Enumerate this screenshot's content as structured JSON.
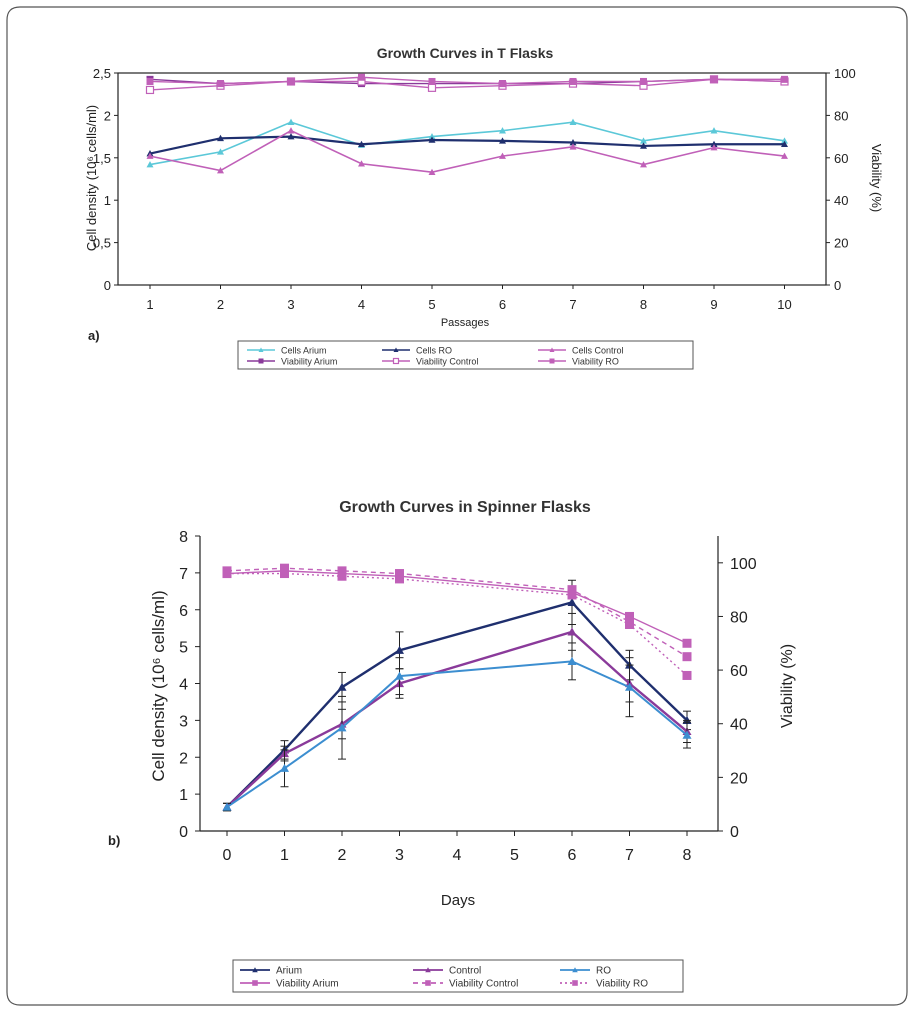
{
  "colors": {
    "cyan": "#5bc8d8",
    "navy": "#1f2f6e",
    "magenta": "#c060b8",
    "purple": "#8a3a9a",
    "blue": "#3c8ed0",
    "pink": "#c060b8",
    "frame": "#555555"
  },
  "chart_data": [
    {
      "type": "line",
      "panel_label": "a)",
      "title": "Growth Curves in T Flasks",
      "xlabel": "Passages",
      "ylabel": "Cell density (10⁶ cells/ml)",
      "ylabel_right": "Viability (%)",
      "categories": [
        "1",
        "2",
        "3",
        "4",
        "5",
        "6",
        "7",
        "8",
        "9",
        "10"
      ],
      "x": [
        1,
        2,
        3,
        4,
        5,
        6,
        7,
        8,
        9,
        10
      ],
      "ylim": [
        0,
        2.5
      ],
      "ylim_right": [
        0,
        100
      ],
      "yticks": [
        "0",
        "0,5",
        "1",
        "1,5",
        "2",
        "2,5"
      ],
      "yticks_right": [
        "0",
        "20",
        "40",
        "60",
        "80",
        "100"
      ],
      "grid": false,
      "legend": "bottom",
      "series": [
        {
          "name": "Cells Arium",
          "axis": "left",
          "values": [
            1.42,
            1.57,
            1.92,
            1.65,
            1.75,
            1.82,
            1.92,
            1.7,
            1.82,
            1.7
          ]
        },
        {
          "name": "Cells RO",
          "axis": "left",
          "values": [
            1.55,
            1.73,
            1.75,
            1.66,
            1.71,
            1.7,
            1.68,
            1.64,
            1.66,
            1.66
          ]
        },
        {
          "name": "Cells Control",
          "axis": "left",
          "values": [
            1.52,
            1.35,
            1.82,
            1.43,
            1.33,
            1.52,
            1.63,
            1.42,
            1.62,
            1.52
          ]
        },
        {
          "name": "Viability Arium",
          "axis": "right",
          "values": [
            97,
            95,
            96,
            95,
            95,
            95,
            95,
            96,
            97,
            96
          ]
        },
        {
          "name": "Viability Control",
          "axis": "right",
          "values": [
            92,
            94,
            96,
            96,
            93,
            94,
            95,
            94,
            97,
            96
          ]
        },
        {
          "name": "Viability RO",
          "axis": "right",
          "values": [
            96,
            95,
            96,
            98,
            96,
            95,
            96,
            96,
            97,
            97
          ]
        }
      ]
    },
    {
      "type": "line",
      "panel_label": "b)",
      "title": "Growth Curves in Spinner Flasks",
      "xlabel": "Days",
      "ylabel": "Cell density (10⁶ cells/ml)",
      "ylabel_right": "Viability (%)",
      "xlim": [
        -0.5,
        8.5
      ],
      "xticks": [
        0,
        1,
        2,
        3,
        4,
        5,
        6,
        7,
        8
      ],
      "ylim": [
        0,
        8
      ],
      "ylim_right": [
        0,
        110
      ],
      "yticks": [
        0,
        1,
        2,
        3,
        4,
        5,
        6,
        7,
        8
      ],
      "yticks_right": [
        0,
        20,
        40,
        60,
        80,
        100
      ],
      "grid": false,
      "legend": "bottom",
      "series": [
        {
          "name": "Arium",
          "axis": "left",
          "x": [
            0,
            1,
            2,
            3,
            6,
            7,
            8
          ],
          "values": [
            0.65,
            2.2,
            3.9,
            4.9,
            6.2,
            4.5,
            3.0
          ],
          "errors": [
            0.1,
            0.25,
            0.4,
            0.5,
            0.6,
            0.4,
            0.25
          ]
        },
        {
          "name": "Control",
          "axis": "left",
          "x": [
            0,
            1,
            2,
            3,
            6,
            7,
            8
          ],
          "values": [
            0.65,
            2.1,
            2.9,
            4.0,
            5.4,
            4.0,
            2.7
          ],
          "errors": [
            0.1,
            0.2,
            0.4,
            0.4,
            0.5,
            0.5,
            0.3
          ]
        },
        {
          "name": "RO",
          "axis": "left",
          "x": [
            0,
            1,
            2,
            3,
            6,
            7,
            8
          ],
          "values": [
            0.65,
            1.7,
            2.8,
            4.2,
            4.6,
            3.9,
            2.6
          ],
          "errors": [
            0.1,
            0.5,
            0.85,
            0.5,
            0.5,
            0.8,
            0.35
          ]
        },
        {
          "name": "Viability Arium",
          "axis": "right",
          "x": [
            0,
            1,
            2,
            3,
            6,
            7,
            8
          ],
          "values": [
            96,
            97,
            96,
            95,
            89,
            80,
            70
          ]
        },
        {
          "name": "Viability Control",
          "axis": "right",
          "x": [
            0,
            1,
            2,
            3,
            6,
            7,
            8
          ],
          "values": [
            97,
            98,
            97,
            96,
            90,
            78,
            65
          ]
        },
        {
          "name": "Viability RO",
          "axis": "right",
          "x": [
            0,
            1,
            2,
            3,
            6,
            7,
            8
          ],
          "values": [
            96,
            96,
            95,
            94,
            88,
            77,
            58
          ]
        }
      ]
    }
  ]
}
